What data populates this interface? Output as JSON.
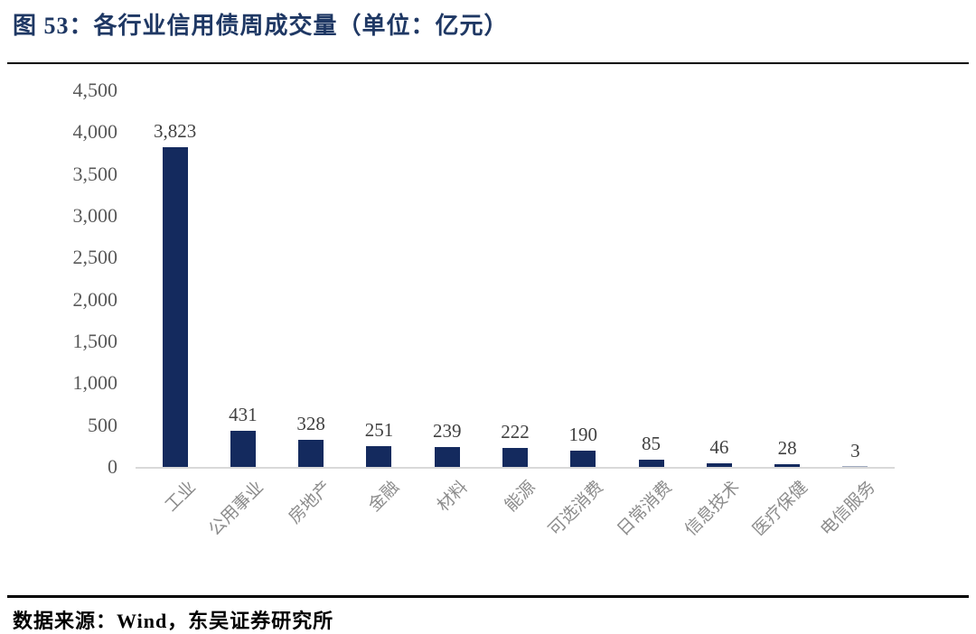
{
  "header": {
    "title": "图 53：各行业信用债周成交量（单位：亿元）"
  },
  "footer": {
    "source": "数据来源：Wind，东吴证券研究所"
  },
  "colors": {
    "title_navy": "#1F3864",
    "bar_navy": "#142A5E",
    "tick_gray": "#595959",
    "value_gray": "#404040",
    "category_gray": "#8C8C8C",
    "baseline_gray": "#D9D9D9",
    "rule_black": "#000000",
    "source_black": "#000000"
  },
  "chart_data": {
    "type": "bar",
    "title": "各行业信用债周成交量（单位：亿元）",
    "categories": [
      "工业",
      "公用事业",
      "房地产",
      "金融",
      "材料",
      "能源",
      "可选消费",
      "日常消费",
      "信息技术",
      "医疗保健",
      "电信服务"
    ],
    "values": [
      3823,
      431,
      328,
      251,
      239,
      222,
      190,
      85,
      46,
      28,
      3
    ],
    "value_labels": [
      "3,823",
      "431",
      "328",
      "251",
      "239",
      "222",
      "190",
      "85",
      "46",
      "28",
      "3"
    ],
    "xlabel": "",
    "ylabel": "",
    "ylim": [
      0,
      4500
    ],
    "ytick_interval": 500,
    "ytick_labels": [
      "0",
      "500",
      "1,000",
      "1,500",
      "2,000",
      "2,500",
      "3,000",
      "3,500",
      "4,000",
      "4,500"
    ],
    "grid": false,
    "legend": "none",
    "value_labels_shown": true,
    "category_label_rotation_deg": -45
  }
}
